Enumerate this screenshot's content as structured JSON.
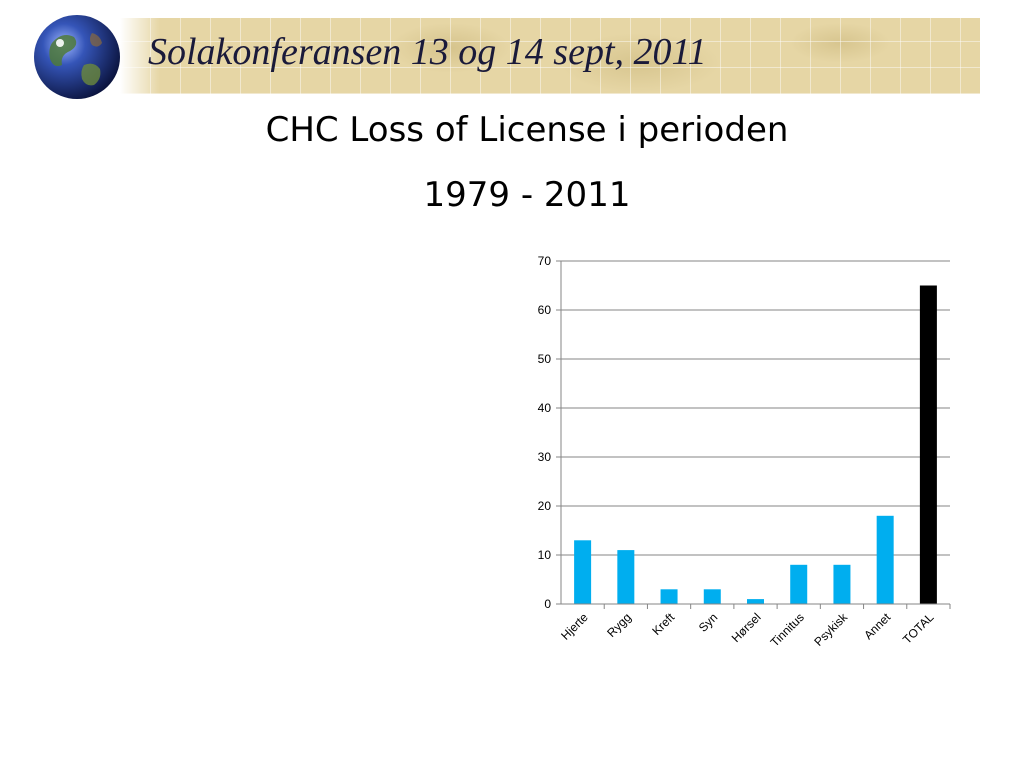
{
  "header": {
    "conference_title": "Solakonferansen 13 og 14 sept, 2011"
  },
  "slide": {
    "title_line1": "CHC Loss of License i perioden",
    "title_line2": "1979 - 2011"
  },
  "icons": {
    "logo": "globe-icon"
  },
  "colors": {
    "bar": "#00aeef",
    "total_bar": "#000000",
    "grid": "#868686",
    "header_band": "#e6d6a5"
  },
  "chart_data": {
    "type": "bar",
    "categories": [
      "Hjerte",
      "Rygg",
      "Kreft",
      "Syn",
      "Hørsel",
      "Tinnitus",
      "Psykisk",
      "Annet",
      "TOTAL"
    ],
    "values": [
      13,
      11,
      3,
      3,
      1,
      8,
      8,
      18,
      65
    ],
    "ylim": [
      0,
      70
    ],
    "yticks": [
      0,
      10,
      20,
      30,
      40,
      50,
      60,
      70
    ],
    "grid": true,
    "legend": "none"
  }
}
